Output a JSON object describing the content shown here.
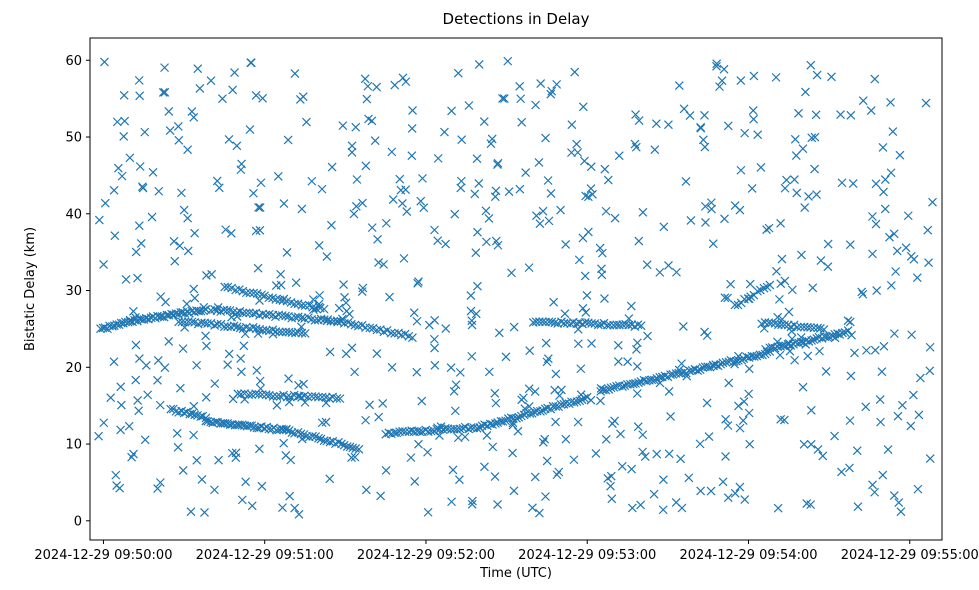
{
  "chart_data": {
    "type": "scatter",
    "title": "Detections in Delay",
    "xlabel": "Time (UTC)",
    "ylabel": "Bistatic Delay (km)",
    "marker": "x",
    "color": "#1f77b4",
    "grid": false,
    "xlim": [
      "2024-12-29 09:49:55",
      "2024-12-29 09:55:12"
    ],
    "ylim": [
      -2.5,
      62.9
    ],
    "x_ticks": [
      "2024-12-29 09:50:00",
      "2024-12-29 09:51:00",
      "2024-12-29 09:52:00",
      "2024-12-29 09:53:00",
      "2024-12-29 09:54:00",
      "2024-12-29 09:55:00"
    ],
    "y_ticks": [
      "0",
      "10",
      "20",
      "30",
      "40",
      "50",
      "60"
    ],
    "series": [
      {
        "tracks": [
          {
            "from": [
              "2024-12-29 09:49:59",
              24.9
            ],
            "to": [
              "2024-12-29 09:50:10",
              26.0
            ],
            "n": 14
          },
          {
            "from": [
              "2024-12-29 09:50:10",
              26.0
            ],
            "to": [
              "2024-12-29 09:50:38",
              27.5
            ],
            "n": 34
          },
          {
            "from": [
              "2024-12-29 09:50:28",
              26.0
            ],
            "to": [
              "2024-12-29 09:51:15",
              24.4
            ],
            "n": 40
          },
          {
            "from": [
              "2024-12-29 09:50:40",
              27.5
            ],
            "to": [
              "2024-12-29 09:51:27",
              26.0
            ],
            "n": 40
          },
          {
            "from": [
              "2024-12-29 09:50:45",
              30.5
            ],
            "to": [
              "2024-12-29 09:51:22",
              27.5
            ],
            "n": 28
          },
          {
            "from": [
              "2024-12-29 09:51:27",
              26.0
            ],
            "to": [
              "2024-12-29 09:51:55",
              24.0
            ],
            "n": 22
          },
          {
            "from": [
              "2024-12-29 09:50:25",
              14.5
            ],
            "to": [
              "2024-12-29 09:50:38",
              13.5
            ],
            "n": 14
          },
          {
            "from": [
              "2024-12-29 09:50:38",
              13.0
            ],
            "to": [
              "2024-12-29 09:51:08",
              11.8
            ],
            "n": 34
          },
          {
            "from": [
              "2024-12-29 09:51:08",
              11.8
            ],
            "to": [
              "2024-12-29 09:51:35",
              9.4
            ],
            "n": 26
          },
          {
            "from": [
              "2024-12-29 09:50:50",
              16.5
            ],
            "to": [
              "2024-12-29 09:51:28",
              16.0
            ],
            "n": 30
          },
          {
            "from": [
              "2024-12-29 09:51:45",
              11.4
            ],
            "to": [
              "2024-12-29 09:52:20",
              12.2
            ],
            "n": 34
          },
          {
            "from": [
              "2024-12-29 09:52:20",
              12.2
            ],
            "to": [
              "2024-12-29 09:53:00",
              16.0
            ],
            "n": 42
          },
          {
            "from": [
              "2024-12-29 09:53:05",
              17.0
            ],
            "to": [
              "2024-12-29 09:53:40",
              19.6
            ],
            "n": 36
          },
          {
            "from": [
              "2024-12-29 09:53:40",
              19.6
            ],
            "to": [
              "2024-12-29 09:54:08",
              22.0
            ],
            "n": 30
          },
          {
            "from": [
              "2024-12-29 09:54:08",
              22.4
            ],
            "to": [
              "2024-12-29 09:54:36",
              24.5
            ],
            "n": 30
          },
          {
            "from": [
              "2024-12-29 09:52:40",
              26.0
            ],
            "to": [
              "2024-12-29 09:53:20",
              25.4
            ],
            "n": 36
          },
          {
            "from": [
              "2024-12-29 09:53:55",
              28.0
            ],
            "to": [
              "2024-12-29 09:54:08",
              30.8
            ],
            "n": 12
          },
          {
            "from": [
              "2024-12-29 09:54:05",
              25.8
            ],
            "to": [
              "2024-12-29 09:54:28",
              25.0
            ],
            "n": 20
          }
        ],
        "scatter": {
          "n": 700,
          "x_range": [
            "2024-12-29 09:49:58",
            "2024-12-29 09:55:09"
          ],
          "y_range": [
            0.8,
            59.9
          ]
        }
      }
    ]
  }
}
